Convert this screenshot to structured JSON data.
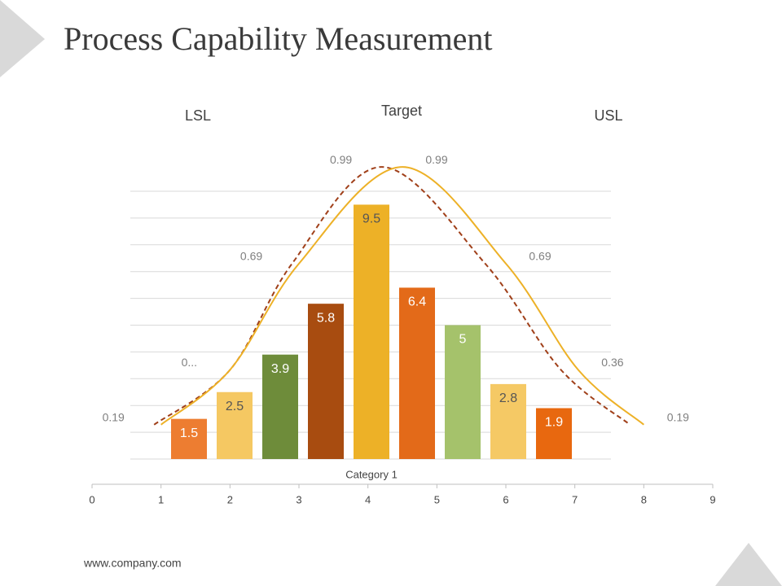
{
  "title": "Process Capability Measurement",
  "footer": "www.company.com",
  "annotations": [
    "LSL",
    "Target",
    "USL"
  ],
  "chart_data": [
    {
      "type": "bar",
      "categories": [
        "Category 1"
      ],
      "ylim": [
        0,
        10
      ],
      "yticks": [
        0,
        1,
        2,
        3,
        4,
        5,
        6,
        7,
        8,
        9,
        10
      ],
      "grid": true,
      "series": [
        {
          "color": "#ED7D31",
          "label_color": "#ffffff",
          "values": [
            1.5
          ]
        },
        {
          "color": "#F5C862",
          "label_color": "#555555",
          "values": [
            2.5
          ]
        },
        {
          "color": "#6E8C3A",
          "label_color": "#ffffff",
          "values": [
            3.9
          ]
        },
        {
          "color": "#A84C10",
          "label_color": "#ffffff",
          "values": [
            5.8
          ]
        },
        {
          "color": "#EDB127",
          "label_color": "#555555",
          "values": [
            9.5
          ]
        },
        {
          "color": "#E36A19",
          "label_color": "#ffffff",
          "values": [
            6.4
          ]
        },
        {
          "color": "#A5C26B",
          "label_color": "#ffffff",
          "values": [
            5
          ]
        },
        {
          "color": "#F5C965",
          "label_color": "#555555",
          "values": [
            2.8
          ]
        },
        {
          "color": "#E8680F",
          "label_color": "#ffffff",
          "values": [
            1.9
          ]
        }
      ]
    },
    {
      "type": "line",
      "xlim": [
        0,
        9
      ],
      "xticks": [
        0,
        1,
        2,
        3,
        4,
        5,
        6,
        7,
        8,
        9
      ],
      "y2lim": [
        0,
        1.2
      ],
      "series": [
        {
          "color": "#A0401A",
          "line_style": "dashed",
          "axis": "y2",
          "x": [
            0.9,
            2.0,
            2.9,
            4.2,
            5.7,
            6.8,
            7.8
          ],
          "values": [
            0.19,
            0.36,
            0.69,
            0.99,
            0.69,
            0.36,
            0.19
          ],
          "value_labels": [
            "0.19",
            "0...",
            "0.69",
            "0.99",
            null,
            null,
            null
          ]
        },
        {
          "color": "#EDB127",
          "line_style": "solid",
          "axis": "y2",
          "x": [
            1.0,
            2.0,
            3.0,
            4.5,
            6.0,
            7.05,
            8.0
          ],
          "values": [
            0.19,
            0.36,
            0.69,
            0.99,
            0.69,
            0.36,
            0.19
          ],
          "value_labels": [
            null,
            null,
            null,
            "0.99",
            "0.69",
            "0.36",
            "0.19"
          ]
        }
      ]
    }
  ]
}
